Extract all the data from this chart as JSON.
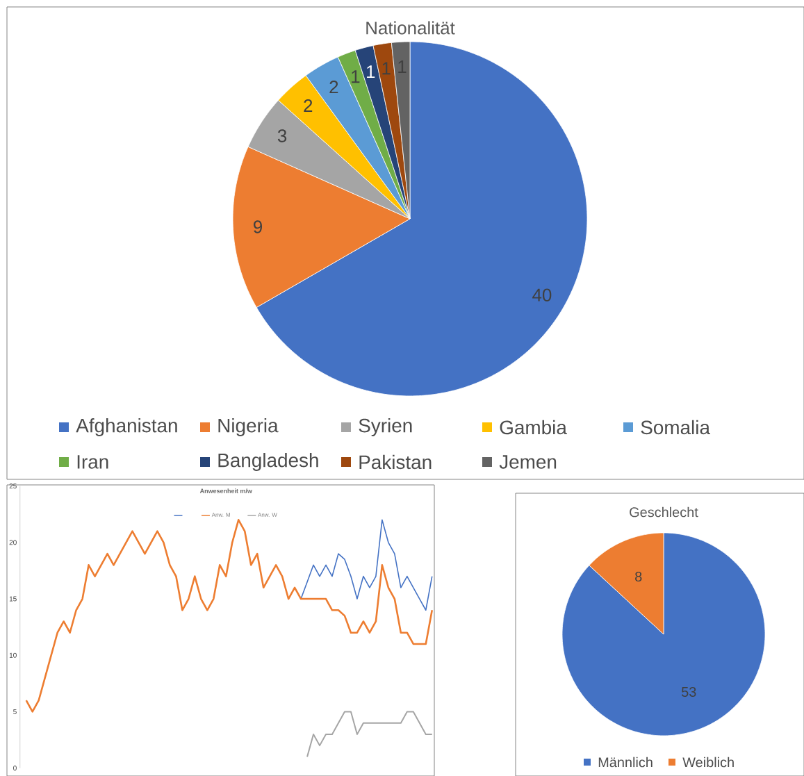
{
  "chart_data": [
    {
      "type": "pie",
      "title": "Nationalität",
      "categories": [
        "Afghanistan",
        "Nigeria",
        "Syrien",
        "Gambia",
        "Somalia",
        "Iran",
        "Bangladesh",
        "Pakistan",
        "Jemen"
      ],
      "values": [
        40,
        9,
        3,
        2,
        2,
        1,
        1,
        1,
        1
      ],
      "colors": [
        "#4472c4",
        "#ed7d31",
        "#a5a5a5",
        "#ffc000",
        "#5b9bd5",
        "#70ad47",
        "#264478",
        "#9e480e",
        "#636363"
      ],
      "data_labels": true,
      "legend": "bottom"
    },
    {
      "type": "line",
      "title": "**Anwesenheit  m/w**",
      "categories": [
        null,
        null,
        null,
        null,
        null,
        null,
        null,
        null,
        null,
        null,
        null,
        null,
        null,
        null,
        null,
        null,
        null,
        null,
        null,
        null,
        null,
        null,
        null,
        null,
        null,
        null,
        null,
        null,
        null,
        null,
        null,
        null,
        null,
        null,
        null,
        null,
        null,
        null,
        null,
        null,
        null,
        null,
        null,
        null,
        null,
        null,
        null,
        null,
        null,
        null,
        null,
        null,
        null,
        null,
        null,
        null,
        null,
        null,
        null,
        null,
        null,
        null,
        null,
        null,
        null,
        null
      ],
      "series": [
        {
          "color": "#4472c4",
          "values": [
            null,
            null,
            null,
            null,
            null,
            null,
            null,
            null,
            null,
            null,
            null,
            null,
            null,
            null,
            null,
            null,
            null,
            null,
            null,
            null,
            null,
            null,
            null,
            null,
            null,
            null,
            null,
            null,
            null,
            null,
            null,
            null,
            null,
            null,
            null,
            null,
            null,
            null,
            null,
            null,
            null,
            null,
            null,
            null,
            15,
            16.5,
            18,
            17,
            18,
            17,
            19,
            18.5,
            17,
            15,
            17,
            16,
            17,
            22,
            20,
            19,
            16,
            17,
            16,
            15,
            14,
            17
          ]
        },
        {
          "name": "Anw. M",
          "color": "#ed7d31",
          "values": [
            6,
            5,
            6,
            8,
            10,
            12,
            13,
            12,
            14,
            15,
            18,
            17,
            18,
            19,
            18,
            19,
            20,
            21,
            20,
            19,
            20,
            21,
            20,
            18,
            17,
            14,
            15,
            17,
            15,
            14,
            15,
            18,
            17,
            20,
            22,
            21,
            18,
            19,
            16,
            17,
            18,
            17,
            15,
            16,
            15,
            15,
            15,
            15,
            15,
            14,
            14,
            13.5,
            12,
            12,
            13,
            12,
            13,
            18,
            16,
            15,
            12,
            12,
            11,
            11,
            11,
            14
          ]
        },
        {
          "name": "Anw. W",
          "color": "#a5a5a5",
          "values": [
            null,
            null,
            null,
            null,
            null,
            null,
            null,
            null,
            null,
            null,
            null,
            null,
            null,
            null,
            null,
            null,
            null,
            null,
            null,
            null,
            null,
            null,
            null,
            null,
            null,
            null,
            null,
            null,
            null,
            null,
            null,
            null,
            null,
            null,
            null,
            null,
            null,
            null,
            null,
            null,
            null,
            null,
            null,
            null,
            null,
            1,
            3,
            2,
            3,
            3,
            4,
            5,
            5,
            3,
            4,
            4,
            4,
            4,
            4,
            4,
            4,
            5,
            5,
            4,
            3,
            3
          ]
        }
      ],
      "ylim": [
        0,
        25
      ],
      "yticks": [
        0,
        5,
        10,
        15,
        20,
        25
      ],
      "legend": "top"
    },
    {
      "type": "pie",
      "title": "Geschlecht",
      "categories": [
        "Männlich",
        "Weiblich"
      ],
      "values": [
        53,
        8
      ],
      "colors": [
        "#4472c4",
        "#ed7d31"
      ],
      "data_labels": true,
      "legend": "bottom"
    }
  ]
}
